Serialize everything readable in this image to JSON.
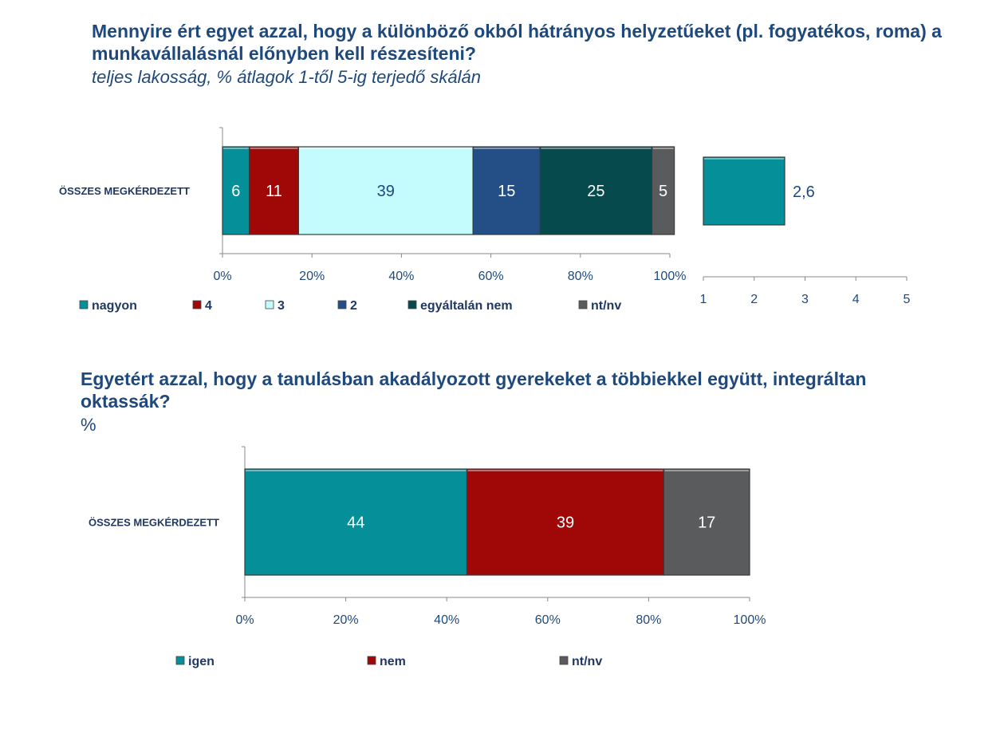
{
  "chart_data": [
    {
      "type": "bar",
      "stacked": "percent",
      "orientation": "horizontal",
      "title": "Mennyire ért egyet azzal, hogy a különböző okból hátrányos helyzetűeket (pl. fogyatékos, roma) a munkavállalásnál előnyben kell részesíteni?",
      "subtitle": "teljes lakosság, % átlagok 1-től 5-ig terjedő skálán",
      "categories": [
        "ÖSSZES MEGKÉRDEZETT"
      ],
      "series": [
        {
          "name": "nagyon",
          "values": [
            6
          ],
          "color": "#059099"
        },
        {
          "name": "4",
          "values": [
            11
          ],
          "color": "#a00808"
        },
        {
          "name": "3",
          "values": [
            39
          ],
          "color": "#c4fbfc"
        },
        {
          "name": "2",
          "values": [
            15
          ],
          "color": "#234f86"
        },
        {
          "name": "egyáltalán nem",
          "values": [
            25
          ],
          "color": "#064a4e"
        },
        {
          "name": "nt/nv",
          "values": [
            5
          ],
          "color": "#5a5b5d"
        }
      ],
      "x_ticks": [
        "0%",
        "20%",
        "40%",
        "60%",
        "80%",
        "100%"
      ],
      "xlim": [
        0,
        100
      ],
      "legend_position": "bottom"
    },
    {
      "type": "bar",
      "orientation": "horizontal",
      "categories": [
        "ÖSSZES MEGKÉRDEZETT"
      ],
      "values": [
        2.6
      ],
      "value_label": "2,6",
      "color": "#059099",
      "x_ticks": [
        "1",
        "2",
        "3",
        "4",
        "5"
      ],
      "xlim": [
        1,
        5
      ]
    },
    {
      "type": "bar",
      "stacked": "percent",
      "orientation": "horizontal",
      "title": "Egyetért azzal, hogy a tanulásban akadályozott gyerekeket a többiekkel együtt, integráltan oktassák?",
      "subtitle": "%",
      "categories": [
        "ÖSSZES MEGKÉRDEZETT"
      ],
      "series": [
        {
          "name": "igen",
          "values": [
            44
          ],
          "color": "#059099"
        },
        {
          "name": "nem",
          "values": [
            39
          ],
          "color": "#a00808"
        },
        {
          "name": "nt/nv",
          "values": [
            17
          ],
          "color": "#5a5b5d"
        }
      ],
      "x_ticks": [
        "0%",
        "20%",
        "40%",
        "60%",
        "80%",
        "100%"
      ],
      "xlim": [
        0,
        100
      ],
      "legend_position": "bottom"
    }
  ]
}
